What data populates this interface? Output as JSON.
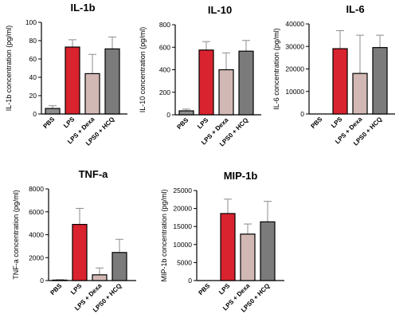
{
  "colors": {
    "PBS": "#8c8c8c",
    "LPS": "#d9232e",
    "LPS + Dexa": "#d2b8b4",
    "LPS0 + HCQ": "#7b7b7b",
    "outline": "#000000",
    "errorbar": "#8c8c8c"
  },
  "chart_data": [
    {
      "type": "bar",
      "title": "IL-1b",
      "ylabel": "IL-1b concentration (pg/ml)",
      "categories": [
        "PBS",
        "LPS",
        "LPS + Dexa",
        "LPS0 + HCQ"
      ],
      "values": [
        6,
        73,
        44,
        71
      ],
      "errors": [
        3,
        8,
        21,
        13
      ],
      "ylim": [
        0,
        100
      ],
      "yticks": [
        "0",
        "20",
        "40",
        "60",
        "80",
        "100"
      ]
    },
    {
      "type": "bar",
      "title": "IL-10",
      "ylabel": "IL-10 concentration (pg/ml)",
      "categories": [
        "PBS",
        "LPS",
        "LPS + Dexa",
        "LPS0 + HCQ"
      ],
      "values": [
        35,
        575,
        400,
        565
      ],
      "errors": [
        15,
        75,
        150,
        95
      ],
      "ylim": [
        0,
        800
      ],
      "yticks": [
        "0",
        "200",
        "400",
        "600",
        "800"
      ]
    },
    {
      "type": "bar",
      "title": "IL-6",
      "ylabel": "IL-6 concentration (pg/ml)",
      "categories": [
        "PBS",
        "LPS",
        "LPS + Dexa",
        "LPS0 + HCQ"
      ],
      "values": [
        0,
        29000,
        18000,
        29500
      ],
      "errors": [
        0,
        8000,
        17000,
        5500
      ],
      "ylim": [
        0,
        40000
      ],
      "yticks": [
        "0",
        "10000",
        "20000",
        "30000",
        "40000"
      ]
    },
    {
      "type": "bar",
      "title": "TNF-a",
      "ylabel": "TNF-a concentration (pg/ml)",
      "categories": [
        "PBS",
        "LPS",
        "LPS + Dexa",
        "LPS0 + HCQ"
      ],
      "values": [
        40,
        4900,
        500,
        2450
      ],
      "errors": [
        40,
        1400,
        600,
        1150
      ],
      "ylim": [
        0,
        8000
      ],
      "yticks": [
        "0",
        "2000",
        "4000",
        "6000",
        "8000"
      ]
    },
    {
      "type": "bar",
      "title": "MIP-1b",
      "ylabel": "MIP-1b concentration (pg/ml)",
      "categories": [
        "PBS",
        "LPS",
        "LPS + Dexa",
        "LPS0 + HCQ"
      ],
      "values": [
        0,
        18600,
        12900,
        16300
      ],
      "errors": [
        0,
        4000,
        2800,
        5700
      ],
      "ylim": [
        0,
        25000
      ],
      "yticks": [
        "0",
        "5000",
        "10000",
        "15000",
        "20000",
        "25000"
      ]
    }
  ]
}
